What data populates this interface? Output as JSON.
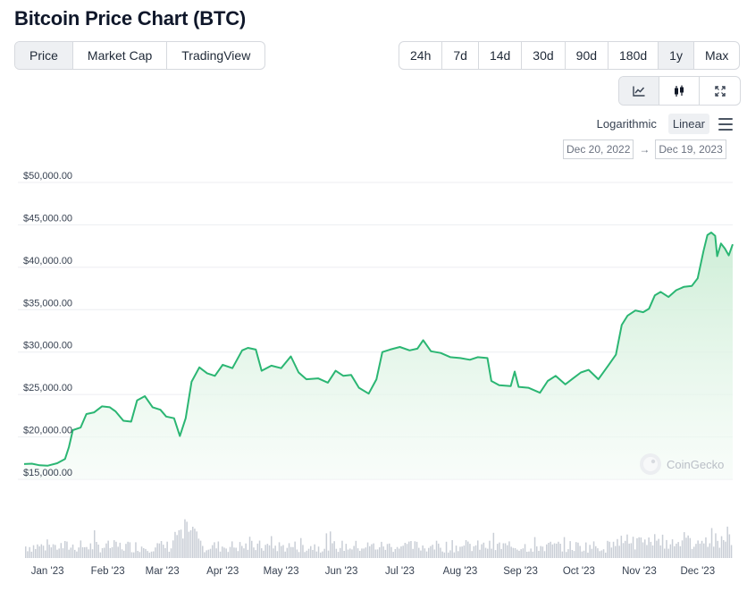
{
  "page_title": "Bitcoin Price Chart (BTC)",
  "tabs": [
    {
      "label": "Price",
      "active": true
    },
    {
      "label": "Market Cap",
      "active": false
    },
    {
      "label": "TradingView",
      "active": false
    }
  ],
  "ranges": [
    {
      "label": "24h",
      "active": false
    },
    {
      "label": "7d",
      "active": false
    },
    {
      "label": "14d",
      "active": false
    },
    {
      "label": "30d",
      "active": false
    },
    {
      "label": "90d",
      "active": false
    },
    {
      "label": "180d",
      "active": false
    },
    {
      "label": "1y",
      "active": true
    },
    {
      "label": "Max",
      "active": false
    }
  ],
  "chart_types": [
    {
      "icon": "line-chart-icon",
      "active": true
    },
    {
      "icon": "candlestick-icon",
      "active": false
    },
    {
      "icon": "expand-icon",
      "active": false
    }
  ],
  "scale": {
    "logarithmic": "Logarithmic",
    "linear": "Linear",
    "active": "linear"
  },
  "date_range": {
    "from": "Dec 20, 2022",
    "arrow": "→",
    "to": "Dec 19, 2023"
  },
  "colors": {
    "line": "#2bb673",
    "fill_top": "#c8ecd2",
    "fill_bottom": "#f4fbf6",
    "volume": "#c9ced6",
    "grid": "#eceef1"
  },
  "chart_data": {
    "type": "area",
    "ylim": [
      15000,
      50000
    ],
    "y_ticks": [
      15000,
      20000,
      25000,
      30000,
      35000,
      40000,
      45000,
      50000
    ],
    "y_tick_labels": [
      "$15,000.00",
      "$20,000.00",
      "$25,000.00",
      "$30,000.00",
      "$35,000.00",
      "$40,000.00",
      "$45,000.00",
      "$50,000.00"
    ],
    "x_tick_labels": [
      "Jan '23",
      "Feb '23",
      "Mar '23",
      "Apr '23",
      "May '23",
      "Jun '23",
      "Jul '23",
      "Aug '23",
      "Sep '23",
      "Oct '23",
      "Nov '23",
      "Dec '23"
    ],
    "x_tick_dates": [
      "2023-01-01",
      "2023-02-01",
      "2023-03-01",
      "2023-04-01",
      "2023-05-01",
      "2023-06-01",
      "2023-07-01",
      "2023-08-01",
      "2023-09-01",
      "2023-10-01",
      "2023-11-01",
      "2023-12-01"
    ],
    "x_start": "2022-12-20",
    "x_end": "2023-12-19",
    "grid": true,
    "legend": "none",
    "watermark": "CoinGecko",
    "series": [
      {
        "values": [
          [
            "2022-12-20",
            16800
          ],
          [
            "2022-12-24",
            16850
          ],
          [
            "2022-12-28",
            16650
          ],
          [
            "2023-01-01",
            16600
          ],
          [
            "2023-01-06",
            16900
          ],
          [
            "2023-01-10",
            17400
          ],
          [
            "2023-01-12",
            18800
          ],
          [
            "2023-01-14",
            20800
          ],
          [
            "2023-01-18",
            21100
          ],
          [
            "2023-01-21",
            22700
          ],
          [
            "2023-01-25",
            22900
          ],
          [
            "2023-01-29",
            23600
          ],
          [
            "2023-02-02",
            23500
          ],
          [
            "2023-02-05",
            23000
          ],
          [
            "2023-02-09",
            21900
          ],
          [
            "2023-02-13",
            21800
          ],
          [
            "2023-02-16",
            24300
          ],
          [
            "2023-02-20",
            24800
          ],
          [
            "2023-02-24",
            23500
          ],
          [
            "2023-02-28",
            23200
          ],
          [
            "2023-03-03",
            22400
          ],
          [
            "2023-03-07",
            22200
          ],
          [
            "2023-03-10",
            20100
          ],
          [
            "2023-03-13",
            22200
          ],
          [
            "2023-03-16",
            26500
          ],
          [
            "2023-03-20",
            28200
          ],
          [
            "2023-03-24",
            27500
          ],
          [
            "2023-03-28",
            27200
          ],
          [
            "2023-04-01",
            28500
          ],
          [
            "2023-04-06",
            28100
          ],
          [
            "2023-04-11",
            30200
          ],
          [
            "2023-04-14",
            30500
          ],
          [
            "2023-04-18",
            30300
          ],
          [
            "2023-04-21",
            27800
          ],
          [
            "2023-04-26",
            28400
          ],
          [
            "2023-05-01",
            28100
          ],
          [
            "2023-05-06",
            29500
          ],
          [
            "2023-05-10",
            27600
          ],
          [
            "2023-05-14",
            26800
          ],
          [
            "2023-05-20",
            26900
          ],
          [
            "2023-05-25",
            26400
          ],
          [
            "2023-05-29",
            27800
          ],
          [
            "2023-06-02",
            27200
          ],
          [
            "2023-06-06",
            27300
          ],
          [
            "2023-06-10",
            25800
          ],
          [
            "2023-06-15",
            25100
          ],
          [
            "2023-06-19",
            26800
          ],
          [
            "2023-06-22",
            30000
          ],
          [
            "2023-06-26",
            30300
          ],
          [
            "2023-07-01",
            30600
          ],
          [
            "2023-07-06",
            30200
          ],
          [
            "2023-07-10",
            30400
          ],
          [
            "2023-07-13",
            31400
          ],
          [
            "2023-07-17",
            30100
          ],
          [
            "2023-07-22",
            29900
          ],
          [
            "2023-07-27",
            29400
          ],
          [
            "2023-08-01",
            29300
          ],
          [
            "2023-08-06",
            29100
          ],
          [
            "2023-08-10",
            29400
          ],
          [
            "2023-08-15",
            29300
          ],
          [
            "2023-08-17",
            26600
          ],
          [
            "2023-08-21",
            26100
          ],
          [
            "2023-08-27",
            26000
          ],
          [
            "2023-08-29",
            27700
          ],
          [
            "2023-08-31",
            25900
          ],
          [
            "2023-09-05",
            25800
          ],
          [
            "2023-09-11",
            25200
          ],
          [
            "2023-09-15",
            26600
          ],
          [
            "2023-09-19",
            27200
          ],
          [
            "2023-09-24",
            26200
          ],
          [
            "2023-09-28",
            26900
          ],
          [
            "2023-10-02",
            27600
          ],
          [
            "2023-10-06",
            27900
          ],
          [
            "2023-10-11",
            26800
          ],
          [
            "2023-10-16",
            28400
          ],
          [
            "2023-10-20",
            29700
          ],
          [
            "2023-10-23",
            33200
          ],
          [
            "2023-10-26",
            34300
          ],
          [
            "2023-10-30",
            34900
          ],
          [
            "2023-11-03",
            34700
          ],
          [
            "2023-11-06",
            35100
          ],
          [
            "2023-11-09",
            36700
          ],
          [
            "2023-11-12",
            37100
          ],
          [
            "2023-11-16",
            36500
          ],
          [
            "2023-11-20",
            37300
          ],
          [
            "2023-11-24",
            37700
          ],
          [
            "2023-11-28",
            37800
          ],
          [
            "2023-12-01",
            38700
          ],
          [
            "2023-12-04",
            41900
          ],
          [
            "2023-12-06",
            43800
          ],
          [
            "2023-12-08",
            44100
          ],
          [
            "2023-12-10",
            43700
          ],
          [
            "2023-12-11",
            41300
          ],
          [
            "2023-12-13",
            42800
          ],
          [
            "2023-12-15",
            42200
          ],
          [
            "2023-12-17",
            41400
          ],
          [
            "2023-12-19",
            42700
          ]
        ]
      }
    ]
  }
}
